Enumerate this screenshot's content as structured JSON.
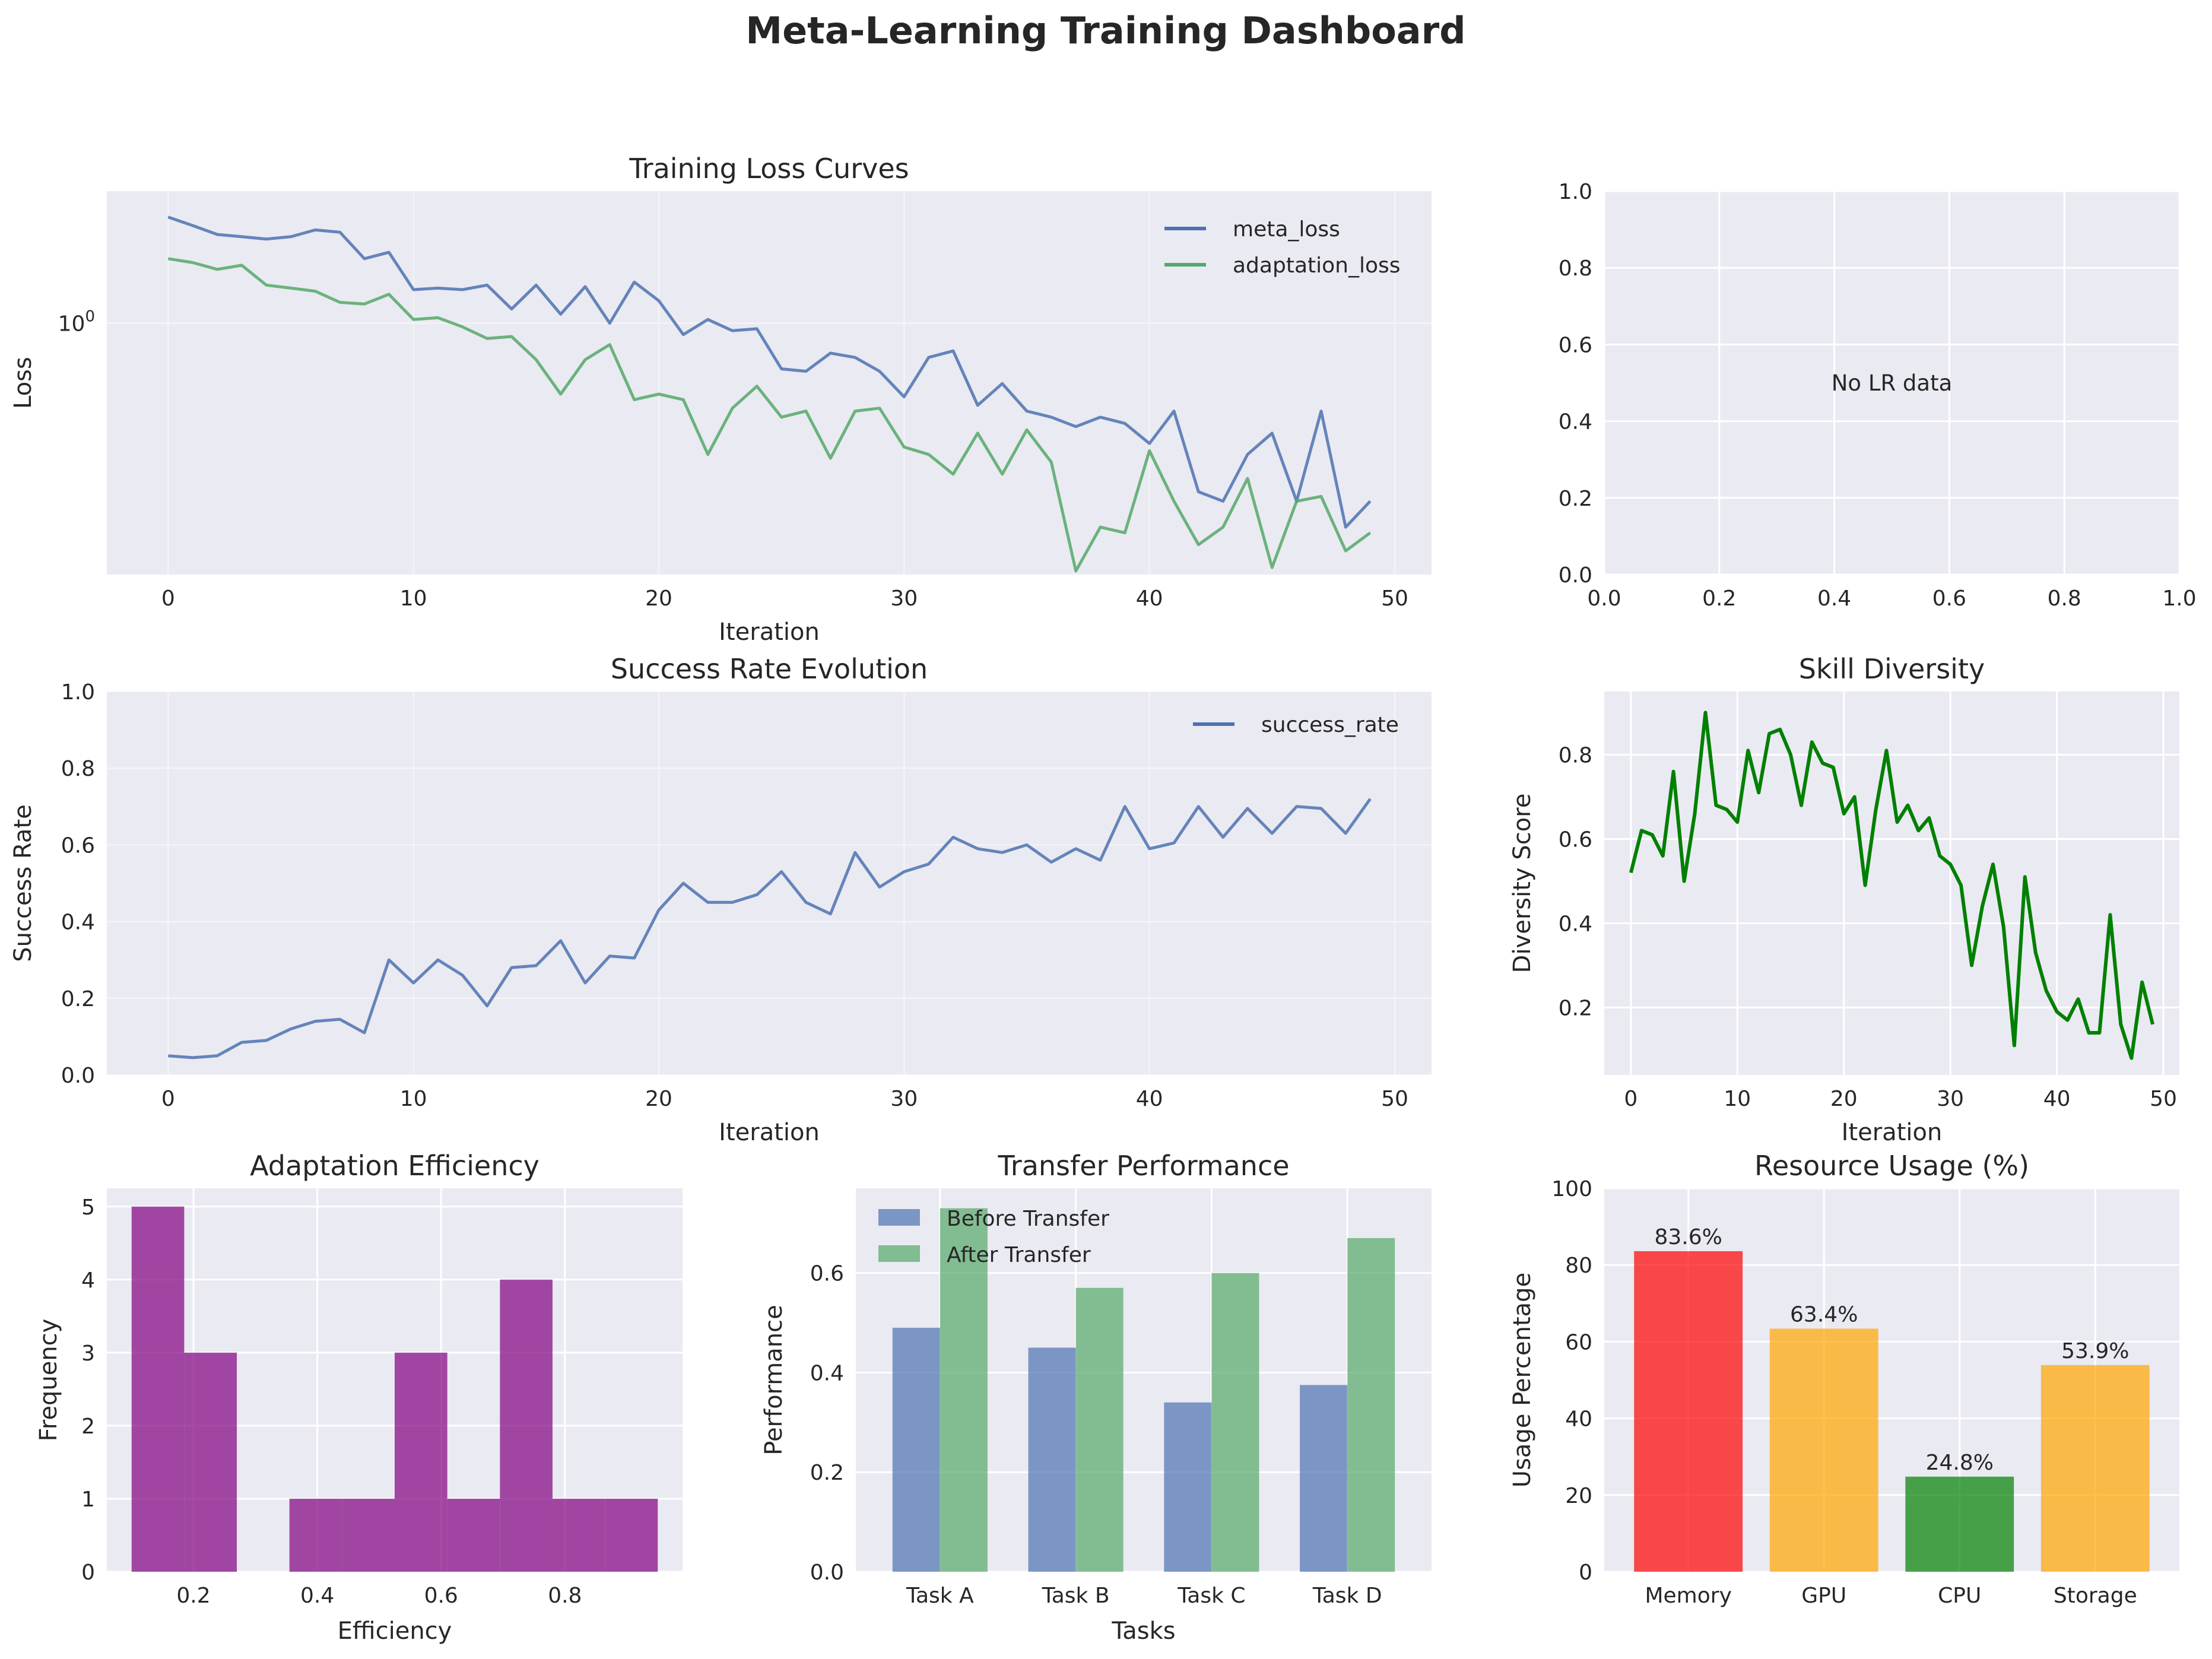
{
  "suptitle": "Meta-Learning Training Dashboard",
  "chart_data": [
    {
      "id": "loss",
      "type": "line",
      "title": "Training Loss Curves",
      "xlabel": "Iteration",
      "ylabel": "Loss",
      "yscale": "log",
      "xlim": [
        -2.5,
        51.5
      ],
      "ylim": [
        0.255,
        2.05
      ],
      "xticks": [
        0,
        10,
        20,
        30,
        40,
        50
      ],
      "yticks": [
        1.0
      ],
      "ytick_labels": [
        "10^0"
      ],
      "grid": true,
      "legend": "top-right",
      "x": [
        0,
        1,
        2,
        3,
        4,
        5,
        6,
        7,
        8,
        9,
        10,
        11,
        12,
        13,
        14,
        15,
        16,
        17,
        18,
        19,
        20,
        21,
        22,
        23,
        24,
        25,
        26,
        27,
        28,
        29,
        30,
        31,
        32,
        33,
        34,
        35,
        36,
        37,
        38,
        39,
        40,
        41,
        42,
        43,
        44,
        45,
        46,
        47,
        48,
        49
      ],
      "series": [
        {
          "name": "meta_loss",
          "color": "#4c72b0",
          "values": [
            1.78,
            1.7,
            1.62,
            1.6,
            1.58,
            1.6,
            1.66,
            1.64,
            1.42,
            1.47,
            1.2,
            1.21,
            1.2,
            1.23,
            1.08,
            1.23,
            1.05,
            1.22,
            1.0,
            1.25,
            1.13,
            0.94,
            1.02,
            0.96,
            0.97,
            0.78,
            0.77,
            0.85,
            0.83,
            0.77,
            0.67,
            0.83,
            0.86,
            0.64,
            0.72,
            0.62,
            0.6,
            0.57,
            0.6,
            0.58,
            0.52,
            0.62,
            0.4,
            0.38,
            0.49,
            0.55,
            0.38,
            0.62,
            0.33,
            0.38
          ]
        },
        {
          "name": "adaptation_loss",
          "color": "#55a868",
          "values": [
            1.42,
            1.39,
            1.34,
            1.37,
            1.23,
            1.21,
            1.19,
            1.12,
            1.11,
            1.17,
            1.02,
            1.03,
            0.98,
            0.92,
            0.93,
            0.82,
            0.68,
            0.82,
            0.89,
            0.66,
            0.68,
            0.66,
            0.49,
            0.63,
            0.71,
            0.6,
            0.62,
            0.48,
            0.62,
            0.63,
            0.51,
            0.49,
            0.44,
            0.55,
            0.44,
            0.56,
            0.47,
            0.26,
            0.33,
            0.32,
            0.5,
            0.38,
            0.3,
            0.33,
            0.43,
            0.265,
            0.38,
            0.39,
            0.29,
            0.32
          ]
        }
      ]
    },
    {
      "id": "lr",
      "type": "line",
      "title": "",
      "xlim": [
        0,
        1
      ],
      "ylim": [
        0,
        1
      ],
      "xticks": [
        0.0,
        0.2,
        0.4,
        0.6,
        0.8,
        1.0
      ],
      "yticks": [
        0.0,
        0.2,
        0.4,
        0.6,
        0.8,
        1.0
      ],
      "xtick_labels": [
        "0.0",
        "0.2",
        "0.4",
        "0.6",
        "0.8",
        "1.0"
      ],
      "ytick_labels": [
        "0.0",
        "0.2",
        "0.4",
        "0.6",
        "0.8",
        "1.0"
      ],
      "grid": true,
      "annotation": "No LR data"
    },
    {
      "id": "success",
      "type": "line",
      "title": "Success Rate Evolution",
      "xlabel": "Iteration",
      "ylabel": "Success Rate",
      "xlim": [
        -2.5,
        51.5
      ],
      "ylim": [
        0,
        1
      ],
      "xticks": [
        0,
        10,
        20,
        30,
        40,
        50
      ],
      "yticks": [
        0.0,
        0.2,
        0.4,
        0.6,
        0.8,
        1.0
      ],
      "ytick_labels": [
        "0.0",
        "0.2",
        "0.4",
        "0.6",
        "0.8",
        "1.0"
      ],
      "grid": true,
      "legend": "top-right",
      "x": [
        0,
        1,
        2,
        3,
        4,
        5,
        6,
        7,
        8,
        9,
        10,
        11,
        12,
        13,
        14,
        15,
        16,
        17,
        18,
        19,
        20,
        21,
        22,
        23,
        24,
        25,
        26,
        27,
        28,
        29,
        30,
        31,
        32,
        33,
        34,
        35,
        36,
        37,
        38,
        39,
        40,
        41,
        42,
        43,
        44,
        45,
        46,
        47,
        48,
        49
      ],
      "series": [
        {
          "name": "success_rate",
          "color": "#4c72b0",
          "values": [
            0.05,
            0.045,
            0.05,
            0.085,
            0.09,
            0.12,
            0.14,
            0.145,
            0.11,
            0.3,
            0.24,
            0.3,
            0.26,
            0.18,
            0.28,
            0.285,
            0.35,
            0.24,
            0.31,
            0.305,
            0.43,
            0.5,
            0.45,
            0.45,
            0.47,
            0.53,
            0.45,
            0.42,
            0.58,
            0.49,
            0.53,
            0.55,
            0.62,
            0.59,
            0.58,
            0.6,
            0.555,
            0.59,
            0.56,
            0.7,
            0.59,
            0.605,
            0.7,
            0.62,
            0.695,
            0.63,
            0.7,
            0.695,
            0.63,
            0.72
          ]
        }
      ]
    },
    {
      "id": "diversity",
      "type": "line",
      "title": "Skill Diversity",
      "xlabel": "Iteration",
      "ylabel": "Diversity Score",
      "xlim": [
        -2.5,
        51.5
      ],
      "ylim": [
        0.04,
        0.95
      ],
      "xticks": [
        0,
        10,
        20,
        30,
        40,
        50
      ],
      "yticks": [
        0.2,
        0.4,
        0.6,
        0.8
      ],
      "ytick_labels": [
        "0.2",
        "0.4",
        "0.6",
        "0.8"
      ],
      "grid": true,
      "x": [
        0,
        1,
        2,
        3,
        4,
        5,
        6,
        7,
        8,
        9,
        10,
        11,
        12,
        13,
        14,
        15,
        16,
        17,
        18,
        19,
        20,
        21,
        22,
        23,
        24,
        25,
        26,
        27,
        28,
        29,
        30,
        31,
        32,
        33,
        34,
        35,
        36,
        37,
        38,
        39,
        40,
        41,
        42,
        43,
        44,
        45,
        46,
        47,
        48,
        49
      ],
      "series": [
        {
          "color": "#008000",
          "values": [
            0.52,
            0.62,
            0.61,
            0.56,
            0.76,
            0.5,
            0.66,
            0.9,
            0.68,
            0.67,
            0.64,
            0.81,
            0.71,
            0.85,
            0.86,
            0.8,
            0.68,
            0.83,
            0.78,
            0.77,
            0.66,
            0.7,
            0.49,
            0.67,
            0.81,
            0.64,
            0.68,
            0.62,
            0.65,
            0.56,
            0.54,
            0.49,
            0.3,
            0.44,
            0.54,
            0.39,
            0.11,
            0.51,
            0.33,
            0.24,
            0.19,
            0.17,
            0.22,
            0.14,
            0.14,
            0.42,
            0.16,
            0.08,
            0.26,
            0.16
          ]
        }
      ]
    },
    {
      "id": "efficiency",
      "type": "bar",
      "subtype": "histogram",
      "title": "Adaptation Efficiency",
      "xlabel": "Efficiency",
      "ylabel": "Frequency",
      "xlim": [
        0.06,
        0.99
      ],
      "ylim": [
        0,
        5.25
      ],
      "xticks": [
        0.2,
        0.4,
        0.6,
        0.8
      ],
      "yticks": [
        0,
        1,
        2,
        3,
        4,
        5
      ],
      "xtick_labels": [
        "0.2",
        "0.4",
        "0.6",
        "0.8"
      ],
      "ytick_labels": [
        "0",
        "1",
        "2",
        "3",
        "4",
        "5"
      ],
      "grid": true,
      "color": "#800080",
      "bin_edges": [
        0.1,
        0.185,
        0.27,
        0.355,
        0.44,
        0.525,
        0.61,
        0.695,
        0.78,
        0.865,
        0.95
      ],
      "values": [
        5,
        3,
        0,
        1,
        1,
        3,
        1,
        4,
        1,
        1
      ]
    },
    {
      "id": "transfer",
      "type": "bar",
      "title": "Transfer Performance",
      "xlabel": "Tasks",
      "ylabel": "Performance",
      "ylim": [
        0,
        0.77
      ],
      "yticks": [
        0.0,
        0.2,
        0.4,
        0.6
      ],
      "ytick_labels": [
        "0.0",
        "0.2",
        "0.4",
        "0.6"
      ],
      "grid": true,
      "legend": "top-left",
      "categories": [
        "Task A",
        "Task B",
        "Task C",
        "Task D"
      ],
      "series": [
        {
          "name": "Before Transfer",
          "color": "#4c72b0",
          "values": [
            0.49,
            0.45,
            0.34,
            0.375
          ]
        },
        {
          "name": "After Transfer",
          "color": "#55a868",
          "values": [
            0.73,
            0.57,
            0.6,
            0.67
          ]
        }
      ]
    },
    {
      "id": "resources",
      "type": "bar",
      "title": "Resource Usage (%)",
      "ylabel": "Usage Percentage",
      "ylim": [
        0,
        100
      ],
      "yticks": [
        0,
        20,
        40,
        60,
        80,
        100
      ],
      "ytick_labels": [
        "0",
        "20",
        "40",
        "60",
        "80",
        "100"
      ],
      "grid": true,
      "categories": [
        "Memory",
        "GPU",
        "CPU",
        "Storage"
      ],
      "values": [
        83.6,
        63.4,
        24.8,
        53.9
      ],
      "value_labels": [
        "83.6%",
        "63.4%",
        "24.8%",
        "53.9%"
      ],
      "colors": [
        "#ff0000",
        "#ffa500",
        "#008000",
        "#ffa500"
      ]
    }
  ]
}
